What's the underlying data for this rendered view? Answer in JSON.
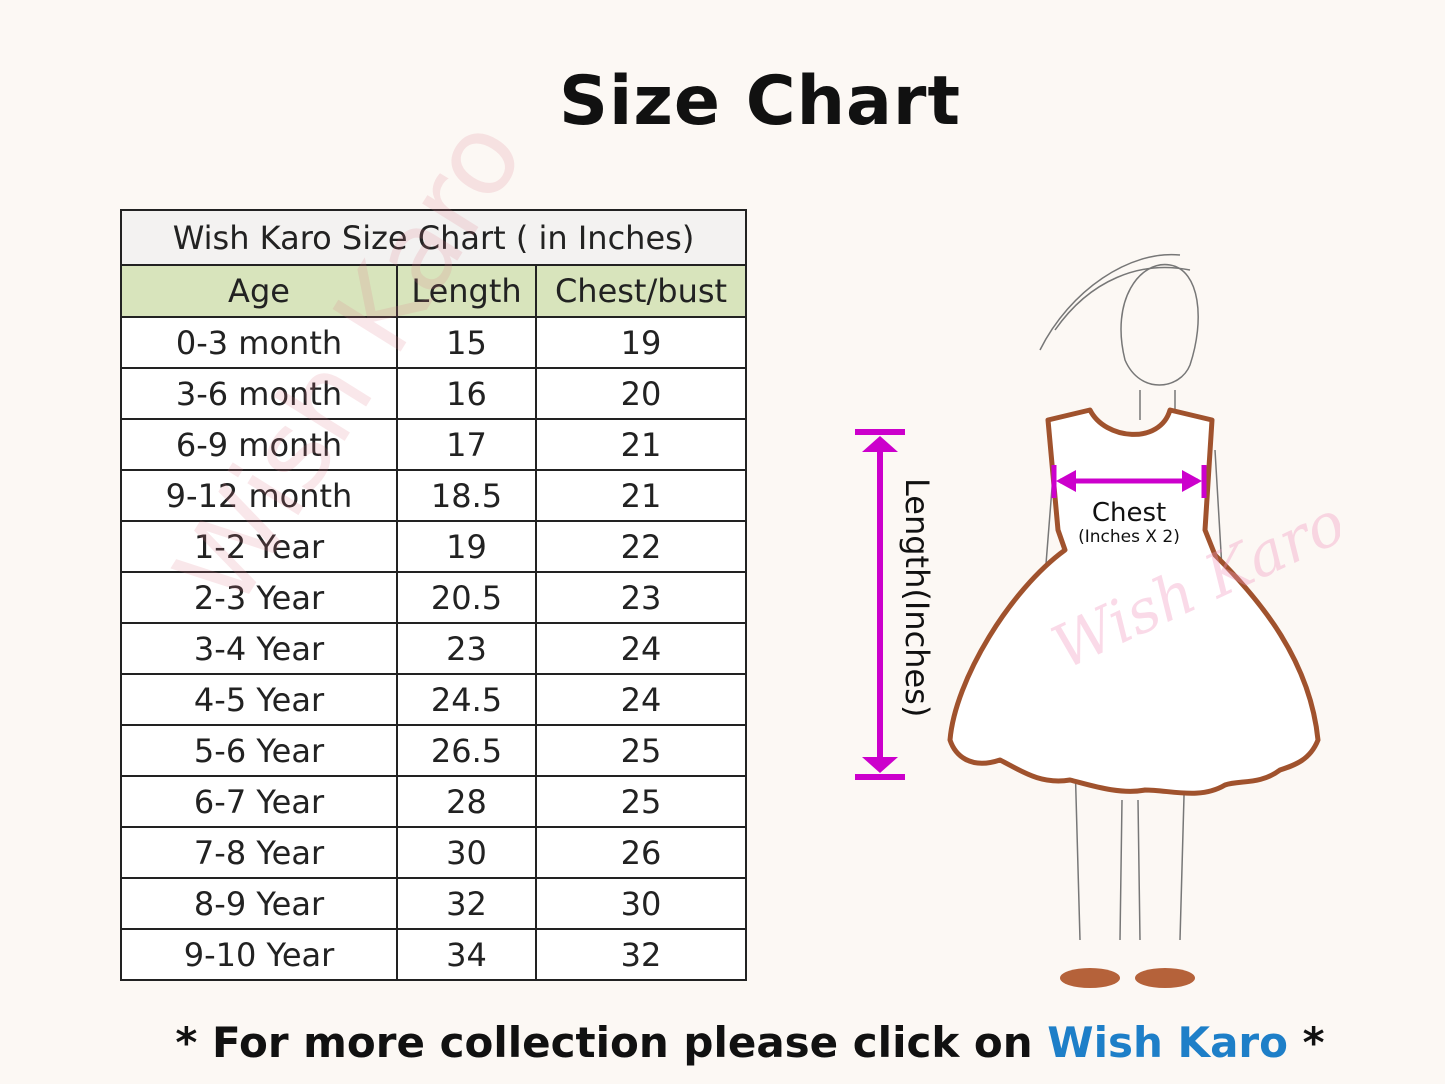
{
  "title": "Size Chart",
  "table": {
    "caption": "Wish Karo Size Chart ( in Inches)",
    "columns": [
      "Age",
      "Length",
      "Chest/bust"
    ],
    "rows": [
      [
        "0-3 month",
        "15",
        "19"
      ],
      [
        "3-6 month",
        "16",
        "20"
      ],
      [
        "6-9 month",
        "17",
        "21"
      ],
      [
        "9-12 month",
        "18.5",
        "21"
      ],
      [
        "1-2 Year",
        "19",
        "22"
      ],
      [
        "2-3 Year",
        "20.5",
        "23"
      ],
      [
        "3-4 Year",
        "23",
        "24"
      ],
      [
        "4-5 Year",
        "24.5",
        "24"
      ],
      [
        "5-6 Year",
        "26.5",
        "25"
      ],
      [
        "6-7 Year",
        "28",
        "25"
      ],
      [
        "7-8 Year",
        "30",
        "26"
      ],
      [
        "8-9 Year",
        "32",
        "30"
      ],
      [
        "9-10 Year",
        "34",
        "32"
      ]
    ],
    "watermark": "Wish Karo"
  },
  "illustration": {
    "length_label": "Length(Inches)",
    "chest_label": "Chest",
    "chest_sublabel": "(Inches X 2)",
    "watermark": "Wish Karo",
    "arrow_color": "#cc00cc",
    "dress_outline_color": "#a0522d"
  },
  "footer": {
    "prefix": "* For more collection please click on ",
    "link": "Wish Karo",
    "suffix": " *",
    "link_color": "#1e7fc8"
  }
}
